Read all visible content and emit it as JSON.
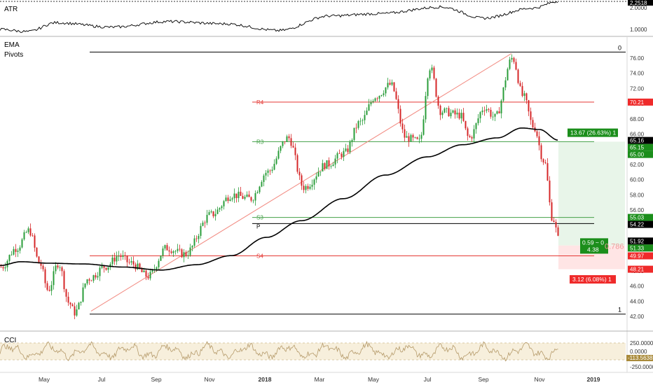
{
  "colors": {
    "up": "#2a9d3a",
    "down": "#d62728",
    "ema": "#000000",
    "pivot_red": "#e53935",
    "pivot_green": "#43a047",
    "pivot_black": "#000000",
    "fib": "#000000",
    "trend": "#f28b82",
    "profit_fill": "#e8f5e9",
    "loss_fill": "#ffe5e5",
    "cci_band": "#f7efdc",
    "cci_line": "#b59a6a",
    "label_green": "#1b8e1b",
    "label_red": "#ef2a2a",
    "label_black": "#000000"
  },
  "atr_panel": {
    "title": "ATR",
    "ticks": [
      "2.0000",
      "1.0000"
    ],
    "last_label": "2.2518"
  },
  "main_panel": {
    "title_1": "EMA",
    "title_2": "Pivots",
    "ticks": [
      "76.00",
      "74.00",
      "72.00",
      "70.00",
      "68.00",
      "66.00",
      "64.00",
      "62.00",
      "60.00",
      "58.00",
      "56.00",
      "54.00",
      "52.00",
      "50.00",
      "48.00",
      "46.00",
      "44.00",
      "42.00"
    ]
  },
  "cci_panel": {
    "title": "CCI",
    "ticks": [
      "250.0000",
      "0.0000",
      "-250.0000"
    ],
    "last_label": "-113.5638"
  },
  "x_axis": {
    "labels": [
      "May",
      "Jul",
      "Sep",
      "Nov",
      "2018",
      "Mar",
      "May",
      "Jul",
      "Sep",
      "Nov",
      "2019"
    ]
  },
  "annotations": {
    "fib_top_label": "0",
    "fib_bottom_label": "1",
    "r4": "R4",
    "r3": "R3",
    "s3": "S3",
    "p": "P",
    "s4": "S4",
    "profit_text": "13.67 (26.63%) 1",
    "loss_text": "3.12 (6.08%) 1",
    "rr_line1": "0.59 ~ 0",
    "rr_line2": "4.38",
    "fib_ratio": "0.786"
  },
  "price_labels": {
    "r4": "70.21",
    "ema": "65.16",
    "target_1": "65.15",
    "target_2": "65.00",
    "s3": "55.03",
    "p": "54.22",
    "last": "51.92",
    "entry": "51.33",
    "s4": "49.97",
    "stop": "48.21"
  },
  "chart_data": {
    "type": "line",
    "symbol_series": "price (candlestick)",
    "x": [
      "May",
      "Jul",
      "Sep",
      "Nov",
      "2018",
      "Mar",
      "May",
      "Jul",
      "Sep",
      "Nov",
      "2019"
    ],
    "price_keyframes": [
      {
        "t": 0,
        "v": 48.5
      },
      {
        "t": 22,
        "v": 51.0
      },
      {
        "t": 40,
        "v": 53.3
      },
      {
        "t": 55,
        "v": 49.0
      },
      {
        "t": 67,
        "v": 45.5
      },
      {
        "t": 82,
        "v": 49.0
      },
      {
        "t": 97,
        "v": 43.8
      },
      {
        "t": 105,
        "v": 42.5
      },
      {
        "t": 125,
        "v": 47.0
      },
      {
        "t": 150,
        "v": 48.6
      },
      {
        "t": 168,
        "v": 50.0
      },
      {
        "t": 185,
        "v": 49.0
      },
      {
        "t": 210,
        "v": 47.3
      },
      {
        "t": 236,
        "v": 51.0
      },
      {
        "t": 262,
        "v": 50.2
      },
      {
        "t": 300,
        "v": 55.4
      },
      {
        "t": 330,
        "v": 58.0
      },
      {
        "t": 356,
        "v": 57.5
      },
      {
        "t": 380,
        "v": 61.0
      },
      {
        "t": 410,
        "v": 65.5
      },
      {
        "t": 432,
        "v": 59.0
      },
      {
        "t": 465,
        "v": 62.0
      },
      {
        "t": 490,
        "v": 63.5
      },
      {
        "t": 512,
        "v": 67.5
      },
      {
        "t": 535,
        "v": 71.0
      },
      {
        "t": 556,
        "v": 72.5
      },
      {
        "t": 578,
        "v": 65.5
      },
      {
        "t": 597,
        "v": 65.0
      },
      {
        "t": 612,
        "v": 74.8
      },
      {
        "t": 628,
        "v": 69.0
      },
      {
        "t": 655,
        "v": 68.5
      },
      {
        "t": 668,
        "v": 65.5
      },
      {
        "t": 690,
        "v": 69.5
      },
      {
        "t": 705,
        "v": 68.2
      },
      {
        "t": 730,
        "v": 76.0
      },
      {
        "t": 745,
        "v": 71.0
      },
      {
        "t": 760,
        "v": 67.0
      },
      {
        "t": 775,
        "v": 62.5
      },
      {
        "t": 787,
        "v": 55.0
      },
      {
        "t": 797,
        "v": 51.9
      }
    ],
    "ema_keyframes": [
      {
        "t": 0,
        "v": 48.7
      },
      {
        "t": 30,
        "v": 49.2
      },
      {
        "t": 70,
        "v": 49.0
      },
      {
        "t": 120,
        "v": 48.9
      },
      {
        "t": 175,
        "v": 48.5
      },
      {
        "t": 230,
        "v": 48.1
      },
      {
        "t": 280,
        "v": 48.8
      },
      {
        "t": 330,
        "v": 50.0
      },
      {
        "t": 380,
        "v": 52.4
      },
      {
        "t": 430,
        "v": 54.6
      },
      {
        "t": 490,
        "v": 57.5
      },
      {
        "t": 550,
        "v": 60.6
      },
      {
        "t": 610,
        "v": 63.0
      },
      {
        "t": 660,
        "v": 64.6
      },
      {
        "t": 710,
        "v": 65.5
      },
      {
        "t": 745,
        "v": 66.8
      },
      {
        "t": 770,
        "v": 66.6
      },
      {
        "t": 797,
        "v": 65.2
      }
    ],
    "atr_keyframes": [
      {
        "t": 0,
        "v": 1.0
      },
      {
        "t": 40,
        "v": 0.9
      },
      {
        "t": 80,
        "v": 1.3
      },
      {
        "t": 160,
        "v": 1.1
      },
      {
        "t": 240,
        "v": 1.35
      },
      {
        "t": 320,
        "v": 1.25
      },
      {
        "t": 398,
        "v": 0.95
      },
      {
        "t": 470,
        "v": 1.6
      },
      {
        "t": 540,
        "v": 1.7
      },
      {
        "t": 630,
        "v": 2.0
      },
      {
        "t": 690,
        "v": 1.5
      },
      {
        "t": 760,
        "v": 1.95
      },
      {
        "t": 797,
        "v": 2.25
      }
    ],
    "pivots": {
      "R4": 70.21,
      "R3": 65.0,
      "S3": 55.03,
      "P": 54.22,
      "S4": 49.97
    },
    "fib_levels": {
      "0": 76.8,
      "1": 42.3
    },
    "position": {
      "entry": 51.33,
      "target": 65.0,
      "stop": 48.21
    },
    "ylim": [
      41.5,
      77.5
    ],
    "atr_ylim": [
      0.5,
      2.4
    ],
    "cci_ylim": [
      -300,
      300
    ]
  }
}
